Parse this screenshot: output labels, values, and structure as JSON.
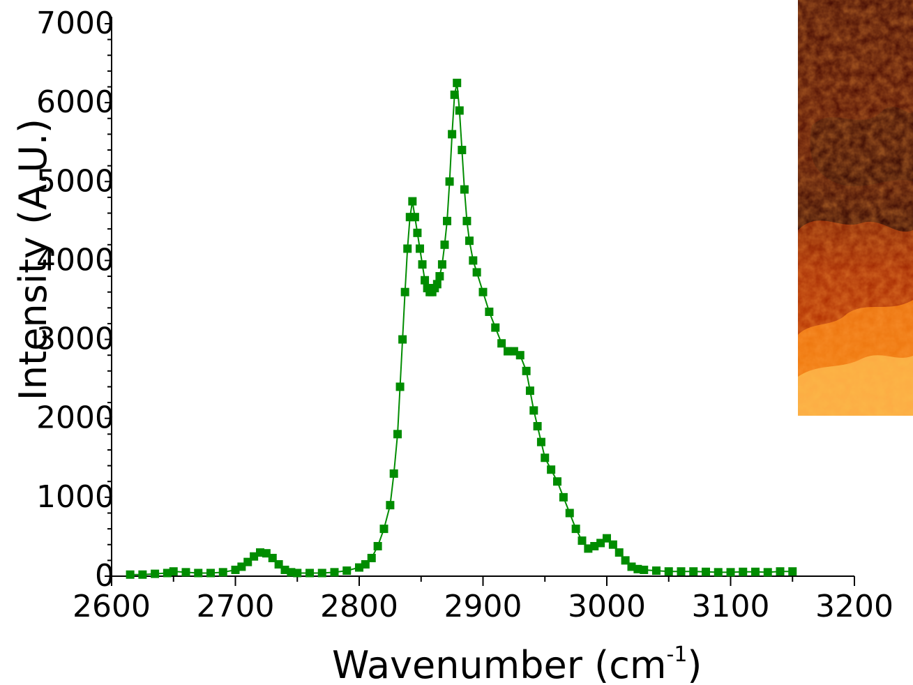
{
  "chart_data": {
    "type": "line",
    "title": "",
    "xlabel": "Wavenumber (cm",
    "xlabel_superscript": "-1",
    "xlabel_close": ")",
    "ylabel": "Intensity (A.U.)",
    "xlim": [
      2600,
      3200
    ],
    "ylim": [
      0,
      7000
    ],
    "x_ticks": [
      "2600",
      "2700",
      "2800",
      "2900",
      "3000",
      "3100",
      "3200"
    ],
    "y_ticks": [
      "0",
      "1000",
      "2000",
      "3000",
      "4000",
      "5000",
      "6000",
      "7000"
    ],
    "series_color": "#008c00",
    "marker": "square",
    "series": [
      {
        "x": [
          2615,
          2625,
          2635,
          2645,
          2650,
          2660,
          2670,
          2680,
          2690,
          2700,
          2705,
          2710,
          2715,
          2720,
          2725,
          2730,
          2735,
          2740,
          2745,
          2750,
          2760,
          2770,
          2780,
          2790,
          2800,
          2805,
          2810,
          2815,
          2820,
          2825,
          2828,
          2831,
          2833,
          2835,
          2837,
          2839,
          2841,
          2843,
          2845,
          2847,
          2849,
          2851,
          2853,
          2855,
          2857,
          2859,
          2861,
          2863,
          2865,
          2867,
          2869,
          2871,
          2873,
          2875,
          2877,
          2879,
          2881,
          2883,
          2885,
          2887,
          2889,
          2892,
          2895,
          2900,
          2905,
          2910,
          2915,
          2920,
          2925,
          2930,
          2935,
          2938,
          2941,
          2944,
          2947,
          2950,
          2955,
          2960,
          2965,
          2970,
          2975,
          2980,
          2985,
          2990,
          2995,
          3000,
          3005,
          3010,
          3015,
          3020,
          3025,
          3030,
          3040,
          3050,
          3060,
          3070,
          3080,
          3090,
          3100,
          3110,
          3120,
          3130,
          3140,
          3150
        ],
        "y": [
          20,
          20,
          30,
          40,
          60,
          50,
          40,
          40,
          50,
          80,
          120,
          180,
          250,
          300,
          290,
          230,
          150,
          80,
          50,
          40,
          40,
          40,
          50,
          70,
          110,
          150,
          230,
          380,
          600,
          900,
          1300,
          1800,
          2400,
          3000,
          3600,
          4150,
          4550,
          4750,
          4550,
          4350,
          4150,
          3950,
          3750,
          3650,
          3600,
          3600,
          3650,
          3700,
          3800,
          3950,
          4200,
          4500,
          5000,
          5600,
          6100,
          6250,
          5900,
          5400,
          4900,
          4500,
          4250,
          4000,
          3850,
          3600,
          3350,
          3150,
          2950,
          2850,
          2850,
          2800,
          2600,
          2350,
          2100,
          1900,
          1700,
          1500,
          1350,
          1200,
          1000,
          800,
          600,
          450,
          350,
          380,
          420,
          480,
          400,
          300,
          200,
          120,
          90,
          80,
          70,
          60,
          60,
          60,
          55,
          50,
          50,
          55,
          55,
          50,
          60,
          60
        ]
      }
    ]
  },
  "inset_image": {
    "description_tag": "chemical-map-heatmap",
    "colors": [
      "#1a0000",
      "#5a0a00",
      "#b02a00",
      "#ff7a00",
      "#ffe070"
    ]
  }
}
